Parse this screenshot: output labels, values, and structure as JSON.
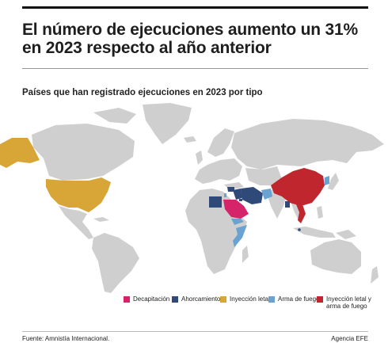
{
  "title": "El número de ejecuciones aumento un 31% en 2023 respecto al año anterior",
  "subtitle": "Países que han registrado ejecuciones en 2023 por tipo",
  "colors": {
    "land": "#cfcfcf",
    "decapitacion": "#d6246b",
    "ahorcamiento": "#2f4a78",
    "inyeccion_letal": "#d8a637",
    "arma_de_fuego": "#6aa3d2",
    "inyeccion_y_arma": "#c0262d"
  },
  "legend": [
    {
      "key": "decapitacion",
      "label": "Decapitación"
    },
    {
      "key": "ahorcamiento",
      "label": "Ahorcamiento"
    },
    {
      "key": "inyeccion_letal",
      "label": "Inyección letal"
    },
    {
      "key": "arma_de_fuego",
      "label": "Arma de fuego"
    },
    {
      "key": "inyeccion_y_arma",
      "label": "Inyección letal y arma de fuego"
    }
  ],
  "countries": [
    {
      "name": "Estados Unidos",
      "key": "inyeccion_letal"
    },
    {
      "name": "Arabia Saudí",
      "key": "decapitacion"
    },
    {
      "name": "Irán",
      "key": "ahorcamiento"
    },
    {
      "name": "Irak",
      "key": "ahorcamiento"
    },
    {
      "name": "Siria",
      "key": "ahorcamiento"
    },
    {
      "name": "Egipto",
      "key": "ahorcamiento"
    },
    {
      "name": "Kuwait",
      "key": "ahorcamiento"
    },
    {
      "name": "Palestina",
      "key": "arma_de_fuego"
    },
    {
      "name": "Afganistán",
      "key": "arma_de_fuego"
    },
    {
      "name": "Yemen",
      "key": "arma_de_fuego"
    },
    {
      "name": "Somalia",
      "key": "arma_de_fuego"
    },
    {
      "name": "Bangladés",
      "key": "ahorcamiento"
    },
    {
      "name": "Singapur",
      "key": "ahorcamiento"
    },
    {
      "name": "Corea del Norte",
      "key": "arma_de_fuego"
    },
    {
      "name": "China",
      "key": "inyeccion_y_arma"
    },
    {
      "name": "Vietnam",
      "key": "inyeccion_y_arma"
    }
  ],
  "source": "Fuente: Amnistía Internacional.",
  "credit": "Agencia EFE"
}
